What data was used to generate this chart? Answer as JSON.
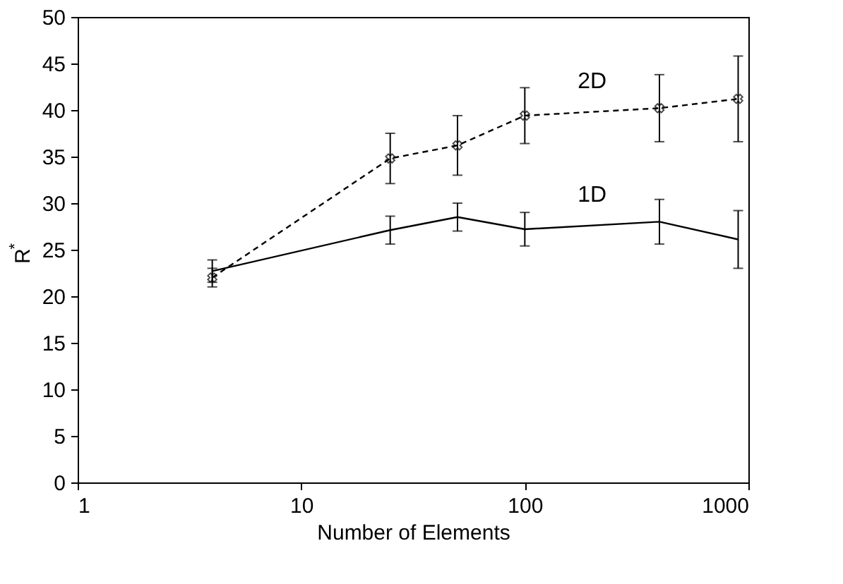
{
  "chart_data": {
    "type": "line",
    "xlabel": "Number of Elements",
    "ylabel": "R$^{*}$",
    "log": "x",
    "xlim": [
      1,
      1000
    ],
    "xticks": [
      1,
      10,
      100,
      1000
    ],
    "ylim": [
      0,
      50
    ],
    "yticks": [
      0,
      5,
      10,
      15,
      20,
      25,
      30,
      35,
      40,
      45,
      50
    ],
    "grid": false,
    "series": [
      {
        "name": "2D",
        "color": "#000000",
        "x": [
          4,
          25,
          50,
          100,
          400,
          900
        ],
        "values": [
          22,
          34.8,
          36.2,
          39.4,
          40.2,
          41.2
        ],
        "errors": [
          1,
          2.7,
          3.2,
          3,
          3.6,
          4.6
        ],
        "line_style": "dashed",
        "marker": "cross"
      },
      {
        "name": "1D",
        "color": "#000000",
        "x": [
          4,
          25,
          50,
          100,
          400,
          900
        ],
        "values": [
          22.7,
          27.1,
          28.5,
          27.2,
          28,
          26.1
        ],
        "errors": [
          1.2,
          1.5,
          1.5,
          1.8,
          2.4,
          3.1
        ],
        "line_style": "solid",
        "marker": "none"
      }
    ]
  }
}
